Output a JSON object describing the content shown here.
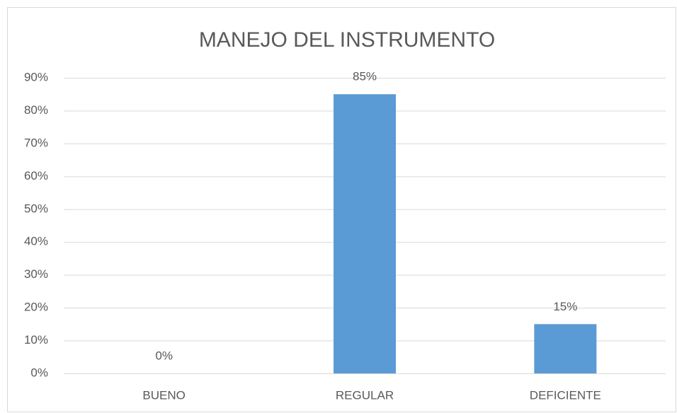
{
  "chart_data": {
    "type": "bar",
    "title": "MANEJO DEL INSTRUMENTO",
    "categories": [
      "BUENO",
      "REGULAR",
      "DEFICIENTE"
    ],
    "values": [
      0,
      85,
      15
    ],
    "value_labels": [
      "0%",
      "85%",
      "15%"
    ],
    "color": "#5b9bd5",
    "ylim": [
      0,
      90
    ],
    "yticks": [
      {
        "value": 0,
        "label": "0%"
      },
      {
        "value": 10,
        "label": "10%"
      },
      {
        "value": 20,
        "label": "20%"
      },
      {
        "value": 30,
        "label": "30%"
      },
      {
        "value": 40,
        "label": "40%"
      },
      {
        "value": 50,
        "label": "50%"
      },
      {
        "value": 60,
        "label": "60%"
      },
      {
        "value": 70,
        "label": "70%"
      },
      {
        "value": 80,
        "label": "80%"
      },
      {
        "value": 90,
        "label": "90%"
      }
    ],
    "grid": true
  }
}
